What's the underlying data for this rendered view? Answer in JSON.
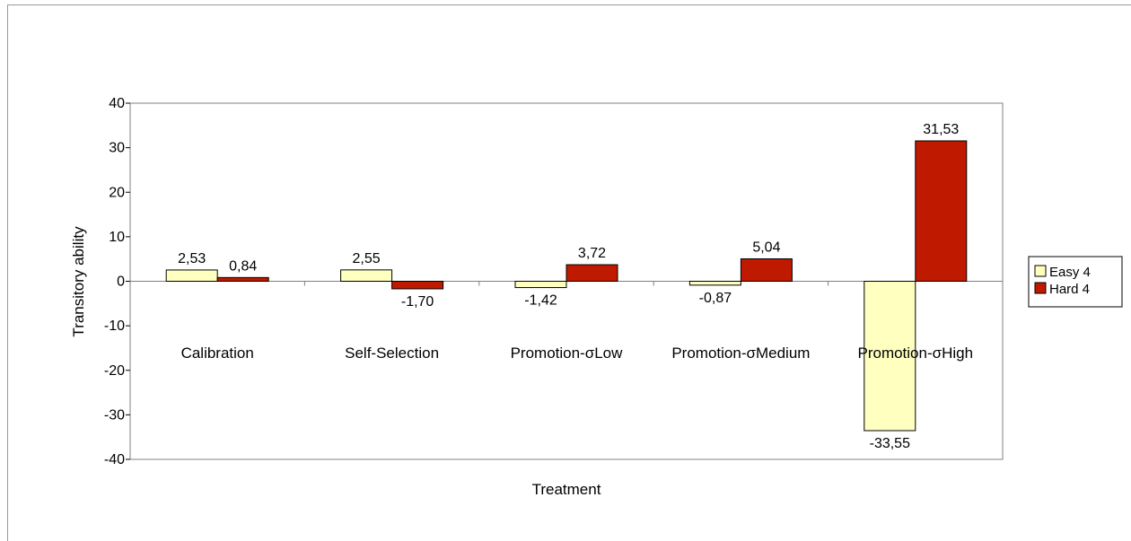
{
  "chart_data": {
    "type": "bar",
    "xlabel": "Treatment",
    "ylabel": "Transitory ability",
    "ylim": [
      -40,
      40
    ],
    "yticks": [
      -40,
      -30,
      -20,
      -10,
      0,
      10,
      20,
      30,
      40
    ],
    "categories": [
      "Calibration",
      "Self-Selection",
      "Promotion-σLow",
      "Promotion-σMedium",
      "Promotion-σHigh"
    ],
    "series": [
      {
        "name": "Easy 4",
        "color": "#ffffc0",
        "values": [
          2.53,
          2.55,
          -1.42,
          -0.87,
          -33.55
        ],
        "labels": [
          "2,53",
          "2,55",
          "-1,42",
          "-0,87",
          "-33,55"
        ]
      },
      {
        "name": "Hard 4",
        "color": "#bf1a00",
        "values": [
          0.84,
          -1.7,
          3.72,
          5.04,
          31.53
        ],
        "labels": [
          "0,84",
          "-1,70",
          "3,72",
          "5,04",
          "31,53"
        ]
      }
    ],
    "legend": "right",
    "grid": false
  }
}
